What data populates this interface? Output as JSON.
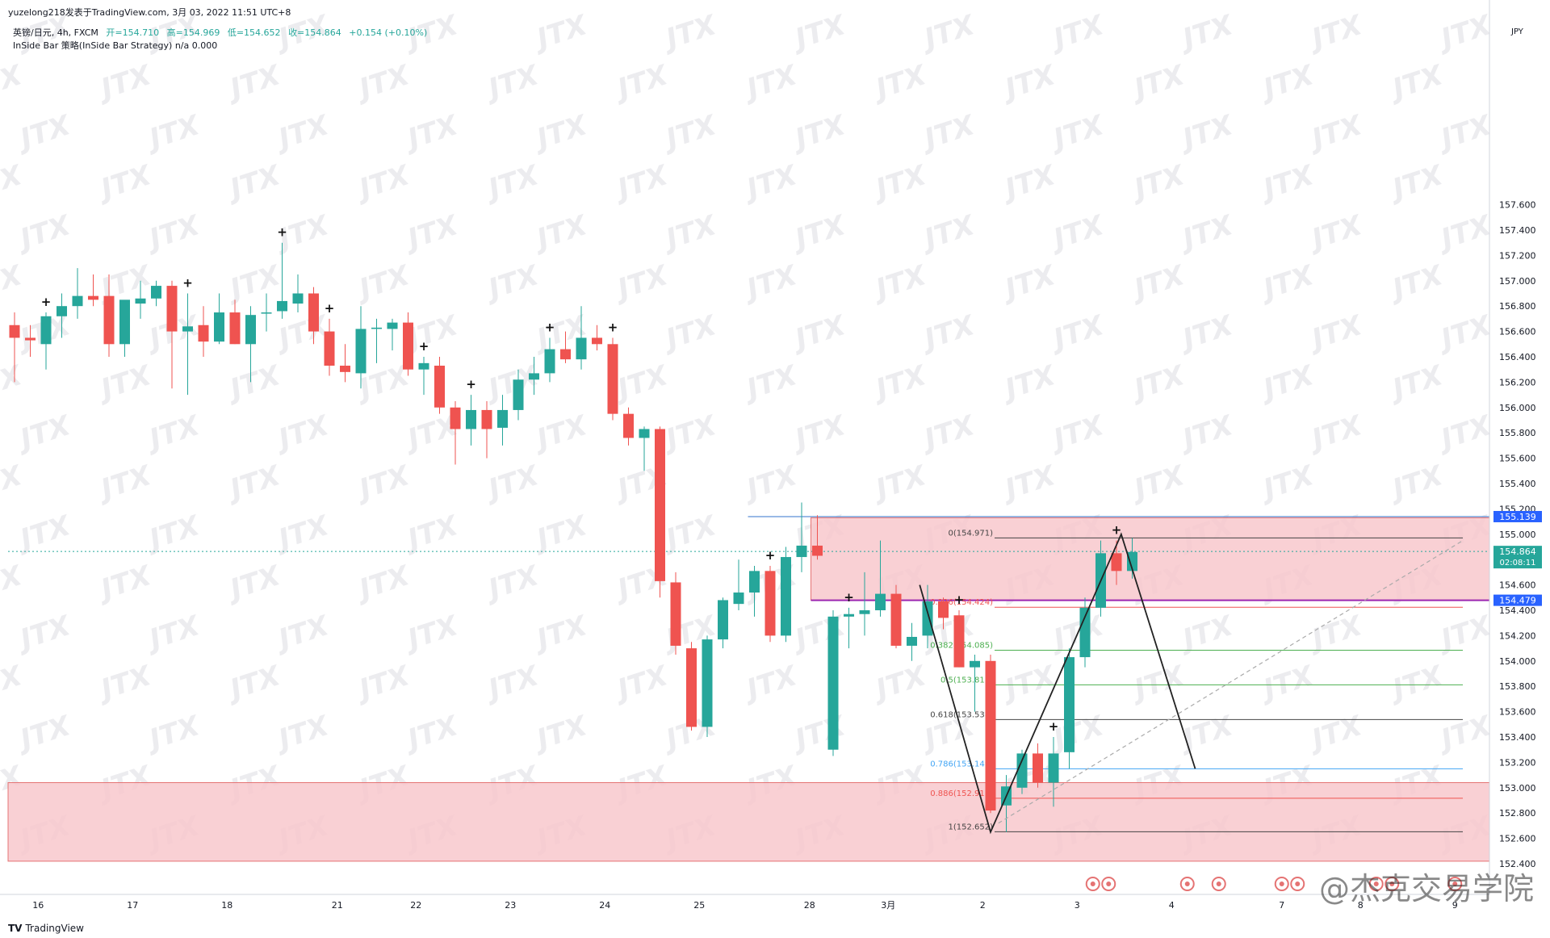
{
  "header": {
    "source_line": "yuzelong218发表于TradingView.com,   3月 03, 2022 11:51 UTC+8",
    "symbol": "英镑/日元, 4h, FXCM",
    "open": "开=154.710",
    "high": "高=154.969",
    "low": "低=154.652",
    "close": "收=154.864",
    "change": "+0.154 (+0.10%)",
    "strategy": "InSide Bar 策略(InSide Bar Strategy)  n/a  0.000"
  },
  "footer": {
    "logo_mark": "TV",
    "logo_text": "TradingView",
    "brand_watermark": "@杰克交易学院"
  },
  "watermark_text": "JTX",
  "currency_label": "JPY",
  "colors": {
    "up": "#26a69a",
    "down": "#ef5350",
    "zone_fill": "#f8c8cc",
    "zone_border": "#e57373",
    "resistance_line": "#5c8fd6",
    "support_line": "#9c27b0",
    "zigzag": "#222222",
    "dashed_trend": "#aaaaaa",
    "price_tag_current": "#26a69a",
    "price_tag_blue": "#2962ff"
  },
  "chart_data": {
    "type": "candlestick",
    "timeframe": "4h",
    "y_axis": {
      "range": [
        152.4,
        157.8
      ],
      "ticks": [
        "152.400",
        "152.600",
        "152.800",
        "153.000",
        "153.200",
        "153.400",
        "153.600",
        "153.800",
        "154.000",
        "154.200",
        "154.400",
        "154.600",
        "154.800",
        "155.000",
        "155.200",
        "155.400",
        "155.600",
        "155.800",
        "156.000",
        "156.200",
        "156.400",
        "156.600",
        "156.800",
        "157.000",
        "157.200",
        "157.400",
        "157.600"
      ]
    },
    "x_axis": {
      "labels": [
        {
          "text": "16",
          "index": 1.5
        },
        {
          "text": "17",
          "index": 7.5
        },
        {
          "text": "18",
          "index": 13.5
        },
        {
          "text": "21",
          "index": 20.5
        },
        {
          "text": "22",
          "index": 25.5
        },
        {
          "text": "23",
          "index": 31.5
        },
        {
          "text": "24",
          "index": 37.5
        },
        {
          "text": "25",
          "index": 43.5
        },
        {
          "text": "28",
          "index": 50.5
        },
        {
          "text": "3月",
          "index": 55.5
        },
        {
          "text": "2",
          "index": 61.5
        },
        {
          "text": "3",
          "index": 67.5
        },
        {
          "text": "4",
          "index": 73.5
        },
        {
          "text": "7",
          "index": 80.5
        },
        {
          "text": "8",
          "index": 85.5
        },
        {
          "text": "9",
          "index": 91.5
        }
      ]
    },
    "candles": [
      {
        "o": 156.65,
        "h": 156.75,
        "l": 156.2,
        "c": 156.55
      },
      {
        "o": 156.55,
        "h": 156.65,
        "l": 156.4,
        "c": 156.53
      },
      {
        "o": 156.5,
        "h": 156.75,
        "l": 156.3,
        "c": 156.72
      },
      {
        "o": 156.72,
        "h": 156.9,
        "l": 156.55,
        "c": 156.8
      },
      {
        "o": 156.8,
        "h": 157.1,
        "l": 156.7,
        "c": 156.88
      },
      {
        "o": 156.88,
        "h": 157.05,
        "l": 156.8,
        "c": 156.85
      },
      {
        "o": 156.88,
        "h": 157.05,
        "l": 156.4,
        "c": 156.5
      },
      {
        "o": 156.5,
        "h": 156.8,
        "l": 156.4,
        "c": 156.85
      },
      {
        "o": 156.82,
        "h": 157.0,
        "l": 156.7,
        "c": 156.86
      },
      {
        "o": 156.86,
        "h": 157.0,
        "l": 156.8,
        "c": 156.96
      },
      {
        "o": 156.96,
        "h": 157.0,
        "l": 156.15,
        "c": 156.6
      },
      {
        "o": 156.6,
        "h": 156.9,
        "l": 156.1,
        "c": 156.64
      },
      {
        "o": 156.65,
        "h": 156.8,
        "l": 156.4,
        "c": 156.52
      },
      {
        "o": 156.52,
        "h": 156.9,
        "l": 156.5,
        "c": 156.75
      },
      {
        "o": 156.75,
        "h": 156.85,
        "l": 156.5,
        "c": 156.5
      },
      {
        "o": 156.5,
        "h": 156.8,
        "l": 156.2,
        "c": 156.73
      },
      {
        "o": 156.75,
        "h": 156.9,
        "l": 156.6,
        "c": 156.75
      },
      {
        "o": 156.76,
        "h": 157.3,
        "l": 156.7,
        "c": 156.84
      },
      {
        "o": 156.82,
        "h": 157.05,
        "l": 156.75,
        "c": 156.9
      },
      {
        "o": 156.9,
        "h": 156.95,
        "l": 156.5,
        "c": 156.6
      },
      {
        "o": 156.6,
        "h": 156.7,
        "l": 156.25,
        "c": 156.33
      },
      {
        "o": 156.33,
        "h": 156.5,
        "l": 156.2,
        "c": 156.28
      },
      {
        "o": 156.27,
        "h": 156.8,
        "l": 156.15,
        "c": 156.62
      },
      {
        "o": 156.62,
        "h": 156.7,
        "l": 156.35,
        "c": 156.63
      },
      {
        "o": 156.62,
        "h": 156.7,
        "l": 156.45,
        "c": 156.67
      },
      {
        "o": 156.67,
        "h": 156.75,
        "l": 156.25,
        "c": 156.3
      },
      {
        "o": 156.3,
        "h": 156.4,
        "l": 156.1,
        "c": 156.35
      },
      {
        "o": 156.33,
        "h": 156.4,
        "l": 155.95,
        "c": 156.0
      },
      {
        "o": 156.0,
        "h": 156.05,
        "l": 155.55,
        "c": 155.83
      },
      {
        "o": 155.83,
        "h": 156.1,
        "l": 155.7,
        "c": 155.98
      },
      {
        "o": 155.98,
        "h": 156.05,
        "l": 155.6,
        "c": 155.83
      },
      {
        "o": 155.84,
        "h": 156.1,
        "l": 155.7,
        "c": 155.98
      },
      {
        "o": 155.98,
        "h": 156.3,
        "l": 155.9,
        "c": 156.22
      },
      {
        "o": 156.22,
        "h": 156.4,
        "l": 156.1,
        "c": 156.27
      },
      {
        "o": 156.27,
        "h": 156.55,
        "l": 156.2,
        "c": 156.46
      },
      {
        "o": 156.46,
        "h": 156.6,
        "l": 156.35,
        "c": 156.38
      },
      {
        "o": 156.38,
        "h": 156.8,
        "l": 156.3,
        "c": 156.55
      },
      {
        "o": 156.55,
        "h": 156.65,
        "l": 156.45,
        "c": 156.5
      },
      {
        "o": 156.5,
        "h": 156.55,
        "l": 155.9,
        "c": 155.95
      },
      {
        "o": 155.95,
        "h": 156.0,
        "l": 155.7,
        "c": 155.76
      },
      {
        "o": 155.76,
        "h": 155.85,
        "l": 155.5,
        "c": 155.83
      },
      {
        "o": 155.83,
        "h": 155.85,
        "l": 154.5,
        "c": 154.63
      },
      {
        "o": 154.62,
        "h": 154.7,
        "l": 154.05,
        "c": 154.12
      },
      {
        "o": 154.1,
        "h": 154.15,
        "l": 153.45,
        "c": 153.48
      },
      {
        "o": 153.48,
        "h": 154.2,
        "l": 153.4,
        "c": 154.17
      },
      {
        "o": 154.17,
        "h": 154.5,
        "l": 154.1,
        "c": 154.48
      },
      {
        "o": 154.45,
        "h": 154.8,
        "l": 154.4,
        "c": 154.54
      },
      {
        "o": 154.54,
        "h": 154.75,
        "l": 154.35,
        "c": 154.71
      },
      {
        "o": 154.71,
        "h": 154.75,
        "l": 154.15,
        "c": 154.2
      },
      {
        "o": 154.2,
        "h": 154.9,
        "l": 154.15,
        "c": 154.82
      },
      {
        "o": 154.82,
        "h": 155.25,
        "l": 154.7,
        "c": 154.91
      },
      {
        "o": 154.91,
        "h": 155.15,
        "l": 154.8,
        "c": 154.83
      },
      {
        "o": 153.3,
        "h": 154.4,
        "l": 153.25,
        "c": 154.35
      },
      {
        "o": 154.35,
        "h": 154.42,
        "l": 154.1,
        "c": 154.37
      },
      {
        "o": 154.37,
        "h": 154.7,
        "l": 154.2,
        "c": 154.4
      },
      {
        "o": 154.4,
        "h": 154.95,
        "l": 154.35,
        "c": 154.53
      },
      {
        "o": 154.53,
        "h": 154.6,
        "l": 154.1,
        "c": 154.12
      },
      {
        "o": 154.12,
        "h": 154.3,
        "l": 154.0,
        "c": 154.19
      },
      {
        "o": 154.2,
        "h": 154.6,
        "l": 154.1,
        "c": 154.47
      },
      {
        "o": 154.47,
        "h": 154.5,
        "l": 154.25,
        "c": 154.34
      },
      {
        "o": 154.36,
        "h": 154.4,
        "l": 153.95,
        "c": 153.95
      },
      {
        "o": 153.95,
        "h": 154.05,
        "l": 153.6,
        "c": 154.0
      },
      {
        "o": 154.0,
        "h": 154.05,
        "l": 152.8,
        "c": 152.82
      },
      {
        "o": 152.86,
        "h": 153.1,
        "l": 152.65,
        "c": 153.01
      },
      {
        "o": 153.0,
        "h": 153.3,
        "l": 152.95,
        "c": 153.27
      },
      {
        "o": 153.27,
        "h": 153.35,
        "l": 153.0,
        "c": 153.04
      },
      {
        "o": 153.04,
        "h": 153.4,
        "l": 152.85,
        "c": 153.27
      },
      {
        "o": 153.28,
        "h": 154.1,
        "l": 153.15,
        "c": 154.03
      },
      {
        "o": 154.03,
        "h": 154.5,
        "l": 153.95,
        "c": 154.42
      },
      {
        "o": 154.42,
        "h": 154.95,
        "l": 154.35,
        "c": 154.85
      },
      {
        "o": 154.85,
        "h": 154.95,
        "l": 154.6,
        "c": 154.71
      },
      {
        "o": 154.71,
        "h": 154.97,
        "l": 154.65,
        "c": 154.86
      }
    ],
    "inside_bar_markers": [
      2,
      11,
      17,
      20,
      26,
      29,
      34,
      38,
      48,
      53,
      60,
      66,
      70
    ],
    "zones": [
      {
        "x_start_index": 51,
        "top": 155.13,
        "bottom": 154.48
      },
      {
        "x_start_index": 0,
        "top": 153.04,
        "bottom": 152.42
      }
    ],
    "horizontal_lines": [
      {
        "price": 155.139,
        "x_start_index": 47,
        "kind": "resistance"
      },
      {
        "price": 154.479,
        "x_start_index": 51,
        "kind": "support"
      },
      {
        "price": 154.864,
        "x_start_index": 0,
        "kind": "current"
      }
    ],
    "fibonacci": {
      "x_start_index": 62,
      "x_end_index": 92,
      "levels": [
        {
          "ratio": "0",
          "price": 154.971,
          "label": "0(154.971)",
          "color": "#444444"
        },
        {
          "ratio": "0.236",
          "price": 154.424,
          "label": "0.236(154.424)",
          "color": "#ef5350"
        },
        {
          "ratio": "0.382",
          "price": 154.085,
          "label": "0.382(154.085)",
          "color": "#4caf50"
        },
        {
          "ratio": "0.5",
          "price": 153.812,
          "label": "0.5(153.812)",
          "color": "#4caf50"
        },
        {
          "ratio": "0.618",
          "price": 153.538,
          "label": "0.618(153.538)",
          "color": "#444444"
        },
        {
          "ratio": "0.786",
          "price": 153.149,
          "label": "0.786(153.149)",
          "color": "#42a5f5"
        },
        {
          "ratio": "0.886",
          "price": 152.917,
          "label": "0.886(152.917)",
          "color": "#ef5350"
        },
        {
          "ratio": "1",
          "price": 152.652,
          "label": "1(152.652)",
          "color": "#444444"
        }
      ]
    },
    "zigzag": [
      {
        "index": 57.5,
        "price": 154.6
      },
      {
        "index": 62.0,
        "price": 152.65
      },
      {
        "index": 70.3,
        "price": 155.0
      },
      {
        "index": 75.0,
        "price": 153.15
      }
    ],
    "dashed_trend": [
      {
        "index": 62.5,
        "price": 152.72
      },
      {
        "index": 92.0,
        "price": 154.95
      }
    ],
    "price_tags": [
      {
        "text": "155.139",
        "price": 155.139,
        "kind": "blue"
      },
      {
        "text": "154.864",
        "sub": "02:08:11",
        "price": 154.864,
        "kind": "current"
      },
      {
        "text": "154.479",
        "price": 154.479,
        "kind": "blue"
      }
    ],
    "event_icons": [
      68.5,
      69.5,
      74.5,
      76.5,
      80.5,
      81.5,
      86.5,
      87.5,
      91.5
    ]
  }
}
